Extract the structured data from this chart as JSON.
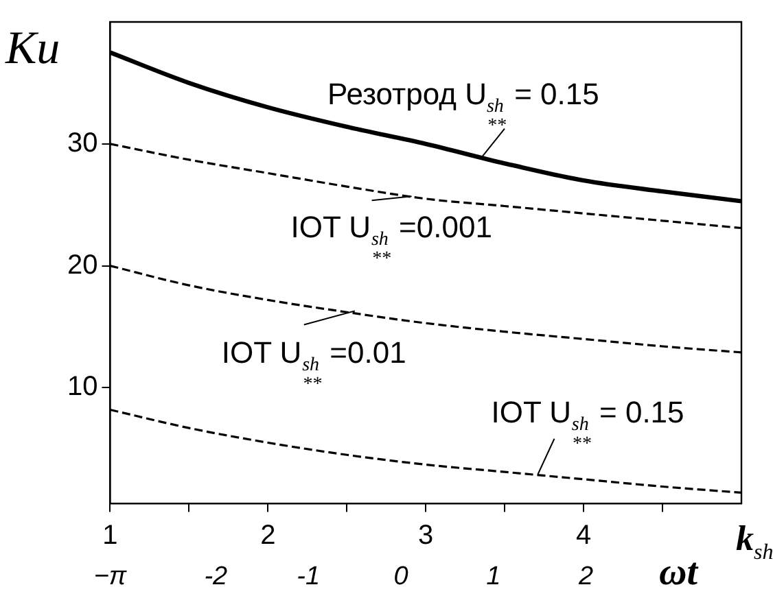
{
  "chart_data": {
    "type": "line",
    "xlabel": "k$_{sh}$",
    "ylabel": "Ku",
    "x2label": "ωt",
    "x": [
      1,
      1.5,
      2,
      2.5,
      3,
      3.5,
      4,
      4.5,
      5
    ],
    "series": [
      {
        "color": "#000000",
        "line_style": "solid",
        "values": [
          37.5,
          35.0,
          33.0,
          31.4,
          30.0,
          28.4,
          27.0,
          26.1,
          25.3
        ]
      },
      {
        "color": "#000000",
        "line_style": "dashed",
        "values": [
          30.0,
          28.7,
          27.6,
          26.5,
          25.5,
          24.9,
          24.3,
          23.7,
          23.1
        ]
      },
      {
        "color": "#000000",
        "line_style": "dashed",
        "values": [
          20.0,
          18.4,
          17.2,
          16.2,
          15.3,
          14.6,
          14.0,
          13.4,
          12.9
        ]
      },
      {
        "color": "#000000",
        "line_style": "dashed",
        "values": [
          8.2,
          6.7,
          5.5,
          4.5,
          3.7,
          3.1,
          2.5,
          1.9,
          1.4
        ]
      }
    ],
    "xlim": [
      1,
      5
    ],
    "xticks": [
      1,
      {
        "value": 1.5,
        "label": null
      },
      2,
      {
        "value": 2.5,
        "label": null
      },
      3,
      {
        "value": 3.5,
        "label": null
      },
      4,
      {
        "value": 4.5,
        "label": null
      }
    ],
    "ylim": [
      0.5,
      40
    ],
    "yticks": [
      10,
      20,
      30
    ],
    "x2lim": [
      -3.1416,
      3.68
    ],
    "x2ticks": [
      {
        "value": -3.1416,
        "label": "−π"
      },
      -2,
      -1,
      0,
      1,
      2
    ],
    "grid": false,
    "legend": false,
    "marker": "none",
    "annotations": [
      {
        "text": "Резотрод U$_{sh}$$_{**}$ = 0.15",
        "x": 3.36,
        "y": 29
      },
      {
        "text": "IOT U$_{sh}$$_{**}$ =0.001",
        "x": 2.91,
        "y": 25.7
      },
      {
        "text": "IOT U$_{sh}$$_{**}$ =0.01",
        "x": 2.55,
        "y": 16.3
      },
      {
        "text": "IOT U$_{sh}$$_{**}$ = 0.15",
        "x": 3.71,
        "y": 2.9
      }
    ]
  }
}
